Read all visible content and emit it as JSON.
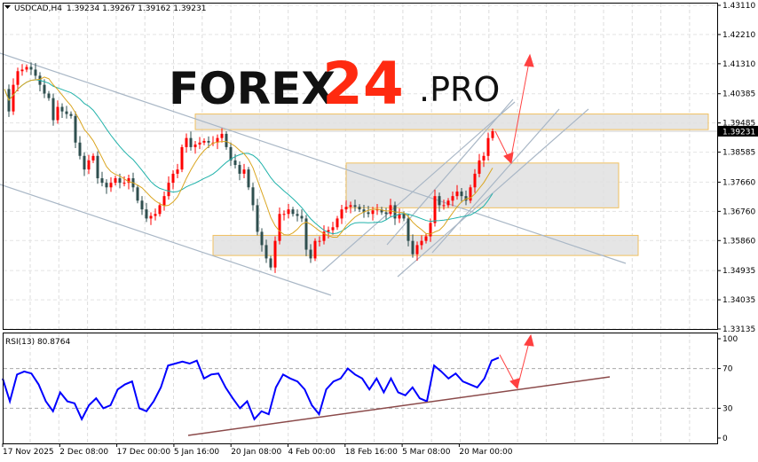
{
  "header": {
    "symbol_info": "USDCAD,H4",
    "ohlc": "1.39234 1.39267 1.39162 1.39231"
  },
  "logo": {
    "text_main": "FOREX",
    "text_number": "24",
    "text_suffix": ".PRO"
  },
  "colors": {
    "bull": "#ff0000",
    "bear": "#2f4f4f",
    "ma_fast": "#daa520",
    "ma_slow": "#20b2aa",
    "rsi": "#0000ff",
    "trend": "#a9b7c6",
    "zone_border": "#f0c060",
    "zone_fill": "#e0e0e0",
    "arrow": "#ff4040",
    "rsi_trend": "#8b4a4a"
  },
  "chart_data": [
    {
      "type": "candlestick",
      "title": "USDCAD,H4",
      "ylim": [
        1.33135,
        1.4311
      ],
      "y_ticks": [
        "1.43110",
        "1.42210",
        "1.41310",
        "1.40385",
        "1.39485",
        "1.38585",
        "1.37660",
        "1.36760",
        "1.35860",
        "1.34935",
        "1.34035",
        "1.33135"
      ],
      "current_price": "1.39231",
      "x_ticks": [
        "17 Nov 2025",
        "2 Dec 08:00",
        "17 Dec 00:00",
        "5 Jan 16:00",
        "20 Jan 08:00",
        "4 Feb 00:00",
        "18 Feb 16:00",
        "5 Mar 08:00",
        "20 Mar 00:00"
      ],
      "closes": [
        1.4053,
        1.3984,
        1.4066,
        1.4108,
        1.4113,
        1.4121,
        1.4113,
        1.4094,
        1.4066,
        1.4039,
        1.4025,
        1.3957,
        1.3998,
        1.3984,
        1.3976,
        1.397,
        1.3888,
        1.3847,
        1.3805,
        1.3833,
        1.3847,
        1.3778,
        1.3764,
        1.375,
        1.3764,
        1.3778,
        1.3764,
        1.3764,
        1.3778,
        1.375,
        1.3709,
        1.3682,
        1.3654,
        1.3662,
        1.3668,
        1.3695,
        1.3723,
        1.3764,
        1.3792,
        1.3805,
        1.3874,
        1.3902,
        1.3874,
        1.3882,
        1.3888,
        1.3893,
        1.3888,
        1.3888,
        1.3902,
        1.3915,
        1.3874,
        1.3833,
        1.3819,
        1.3792,
        1.3805,
        1.375,
        1.3695,
        1.3613,
        1.3572,
        1.3531,
        1.3503,
        1.3585,
        1.3668,
        1.3668,
        1.3682,
        1.3668,
        1.3662,
        1.3654,
        1.3558,
        1.3531,
        1.3585,
        1.3585,
        1.3613,
        1.3618,
        1.3627,
        1.3654,
        1.3682,
        1.369,
        1.3695,
        1.369,
        1.3682,
        1.3673,
        1.3668,
        1.3679,
        1.3682,
        1.3673,
        1.3668,
        1.3695,
        1.3654,
        1.3668,
        1.3654,
        1.3585,
        1.3544,
        1.3572,
        1.3585,
        1.3599,
        1.364,
        1.3723,
        1.3695,
        1.3695,
        1.3709,
        1.3723,
        1.3737,
        1.3723,
        1.3709,
        1.375,
        1.3792,
        1.3833,
        1.3847,
        1.3902,
        1.3923
      ],
      "zones": [
        [
          1.3976,
          1.3928
        ],
        [
          1.3825,
          1.3687
        ],
        [
          1.3602,
          1.354
        ]
      ]
    },
    {
      "type": "line",
      "title": "RSI(13) 80.8764",
      "ylim": [
        0,
        100
      ],
      "y_ticks": [
        "100",
        "70",
        "30",
        "0"
      ],
      "levels": [
        70,
        30
      ],
      "values": [
        60,
        37,
        64,
        67,
        65,
        54,
        37,
        27,
        46,
        37,
        35,
        19,
        33,
        40,
        30,
        33,
        49,
        54,
        57,
        30,
        27,
        37,
        51,
        73,
        75,
        77,
        75,
        78,
        60,
        64,
        65,
        51,
        40,
        30,
        37,
        19,
        27,
        24,
        51,
        64,
        60,
        57,
        49,
        33,
        24,
        49,
        57,
        60,
        70,
        64,
        60,
        49,
        60,
        46,
        60,
        46,
        43,
        51,
        40,
        37,
        73,
        67,
        60,
        65,
        57,
        54,
        51,
        60,
        78,
        81
      ]
    }
  ]
}
